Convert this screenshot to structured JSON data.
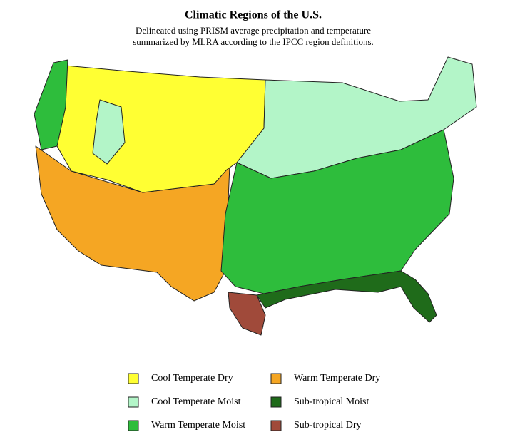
{
  "title": "Climatic Regions of the U.S.",
  "subtitle": [
    "Delineated using PRISM average precipitation and temperature",
    "summarized by MLRA according to the IPCC region definitions."
  ],
  "legend": [
    {
      "label": "Cool Temperate Dry",
      "color": "#ffff33"
    },
    {
      "label": "Cool Temperate Moist",
      "color": "#b3f5c8"
    },
    {
      "label": "Warm Temperate Moist",
      "color": "#2ebd3c"
    },
    {
      "label": "Warm Temperate Dry",
      "color": "#f5a623"
    },
    {
      "label": "Sub-tropical Moist",
      "color": "#1f6b1a"
    },
    {
      "label": "Sub-tropical Dry",
      "color": "#a04a3a"
    }
  ]
}
